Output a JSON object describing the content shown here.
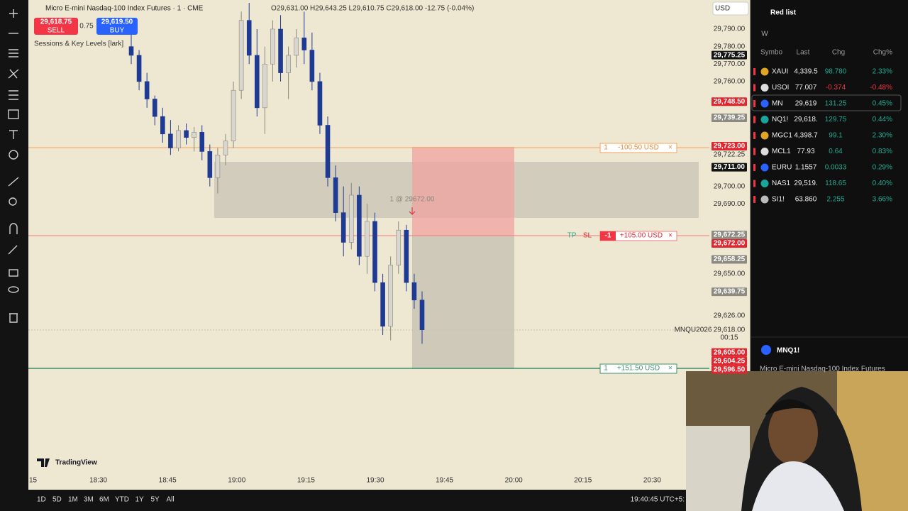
{
  "header": {
    "symbol_title": "Micro E-mini Nasdaq-100 Index Futures · 1 · CME",
    "ohlc": "O29,631.00 H29,643.25 L29,610.75 C29,618.00 -12.75 (-0.04%)",
    "sell_price": "29,618.75",
    "sell_label": "SELL",
    "spread": "0.75",
    "buy_price": "29,619.50",
    "buy_label": "BUY",
    "indicator": "Sessions & Key Levels [lark]",
    "currency": "USD"
  },
  "price_axis": [
    {
      "label": "29,790.00",
      "style": "plain"
    },
    {
      "label": "29,780.00",
      "style": "plain"
    },
    {
      "label": "29,775.25",
      "style": "black"
    },
    {
      "label": "29,770.00",
      "style": "plain"
    },
    {
      "label": "29,760.00",
      "style": "plain"
    },
    {
      "label": "29,748.50",
      "style": "red"
    },
    {
      "label": "29,739.25",
      "style": "grey"
    },
    {
      "label": "29,723.00",
      "style": "red"
    },
    {
      "label": "29,722.25",
      "style": "plain"
    },
    {
      "label": "29,711.00",
      "style": "black"
    },
    {
      "label": "29,700.00",
      "style": "plain"
    },
    {
      "label": "29,690.00",
      "style": "plain"
    },
    {
      "label": "29,672.25",
      "style": "grey"
    },
    {
      "label": "29,672.00",
      "style": "red"
    },
    {
      "label": "29,658.25",
      "style": "grey"
    },
    {
      "label": "29,650.00",
      "style": "plain"
    },
    {
      "label": "29,639.75",
      "style": "grey"
    },
    {
      "label": "29,626.00",
      "style": "plain"
    },
    {
      "label": "29,618.00",
      "style": "plain"
    },
    {
      "label": "29,605.00",
      "style": "red"
    },
    {
      "label": "29,604.25",
      "style": "red"
    },
    {
      "label": "29,596.50",
      "style": "red"
    }
  ],
  "countdown": "00:15",
  "contract": "MNQU2026",
  "fill_note": "1 @ 29672.00",
  "orders": {
    "stop": {
      "qty": "1",
      "pnl": "-100.50 USD",
      "close": "×"
    },
    "entry": {
      "tp": "TP",
      "sl": "SL",
      "qty": "-1",
      "pnl": "+105.00 USD",
      "close": "×"
    },
    "target": {
      "qty": "1",
      "pnl": "+151.50 USD",
      "close": "×"
    }
  },
  "time_axis": [
    "15",
    "18:30",
    "18:45",
    "19:00",
    "19:15",
    "19:30",
    "19:45",
    "20:00",
    "20:15",
    "20:30"
  ],
  "timeframes": [
    "1D",
    "5D",
    "1M",
    "3M",
    "6M",
    "YTD",
    "1Y",
    "5Y",
    "All"
  ],
  "clock": "19:40:45 UTC+5:",
  "brand": "TradingView",
  "candles": {
    "up_color": "#d8d6cf",
    "down_color": "#1f3a93",
    "bars": [
      [
        29780,
        29788,
        29770,
        29775
      ],
      [
        29775,
        29778,
        29755,
        29760
      ],
      [
        29760,
        29765,
        29745,
        29750
      ],
      [
        29750,
        29752,
        29735,
        29740
      ],
      [
        29740,
        29745,
        29725,
        29730
      ],
      [
        29730,
        29738,
        29718,
        29722
      ],
      [
        29722,
        29735,
        29720,
        29732
      ],
      [
        29732,
        29736,
        29724,
        29728
      ],
      [
        29728,
        29734,
        29720,
        29731
      ],
      [
        29731,
        29735,
        29715,
        29720
      ],
      [
        29720,
        29724,
        29700,
        29705
      ],
      [
        29705,
        29722,
        29696,
        29718
      ],
      [
        29718,
        29730,
        29712,
        29726
      ],
      [
        29726,
        29760,
        29722,
        29755
      ],
      [
        29755,
        29800,
        29750,
        29795
      ],
      [
        29795,
        29805,
        29770,
        29775
      ],
      [
        29775,
        29790,
        29740,
        29745
      ],
      [
        29745,
        29780,
        29730,
        29770
      ],
      [
        29770,
        29795,
        29760,
        29790
      ],
      [
        29790,
        29798,
        29760,
        29765
      ],
      [
        29765,
        29780,
        29750,
        29775
      ],
      [
        29775,
        29790,
        29768,
        29785
      ],
      [
        29785,
        29800,
        29770,
        29778
      ],
      [
        29778,
        29788,
        29755,
        29760
      ],
      [
        29760,
        29765,
        29730,
        29735
      ],
      [
        29735,
        29740,
        29700,
        29705
      ],
      [
        29705,
        29712,
        29680,
        29685
      ],
      [
        29685,
        29700,
        29660,
        29668
      ],
      [
        29668,
        29702,
        29664,
        29695
      ],
      [
        29695,
        29700,
        29655,
        29660
      ],
      [
        29660,
        29690,
        29650,
        29680
      ],
      [
        29680,
        29685,
        29640,
        29645
      ],
      [
        29645,
        29650,
        29615,
        29620
      ],
      [
        29620,
        29660,
        29612,
        29655
      ],
      [
        29655,
        29680,
        29650,
        29675
      ],
      [
        29675,
        29678,
        29640,
        29645
      ],
      [
        29645,
        29650,
        29630,
        29635
      ],
      [
        29635,
        29640,
        29610,
        29618
      ]
    ]
  },
  "watchlist": {
    "title": "Red list",
    "tab": "W",
    "columns": [
      "Symbo",
      "Last",
      "Chg",
      "Chg%"
    ],
    "rows": [
      [
        "XAUI",
        "4,339.5",
        "98.780",
        "2.33%"
      ],
      [
        "USOI",
        "77.007",
        "-0.374",
        "-0.48%"
      ],
      [
        "MN",
        "29,619",
        "131.25",
        "0.45%"
      ],
      [
        "NQ1!",
        "29,618.",
        "129.75",
        "0.44%"
      ],
      [
        "MGC1",
        "4,398.7",
        "99.1",
        "2.30%"
      ],
      [
        "MCL1",
        "77.93",
        "0.64",
        "0.83%"
      ],
      [
        "EURU",
        "1.1557",
        "0.0033",
        "0.29%"
      ],
      [
        "NAS1",
        "29,519.",
        "118.65",
        "0.40%"
      ],
      [
        "SI1!",
        "63.860",
        "2.255",
        "3.66%"
      ]
    ]
  },
  "detail": {
    "symbol": "MNQ1!",
    "name": "Micro E-mini Nasdaq-100 Index Futures"
  }
}
